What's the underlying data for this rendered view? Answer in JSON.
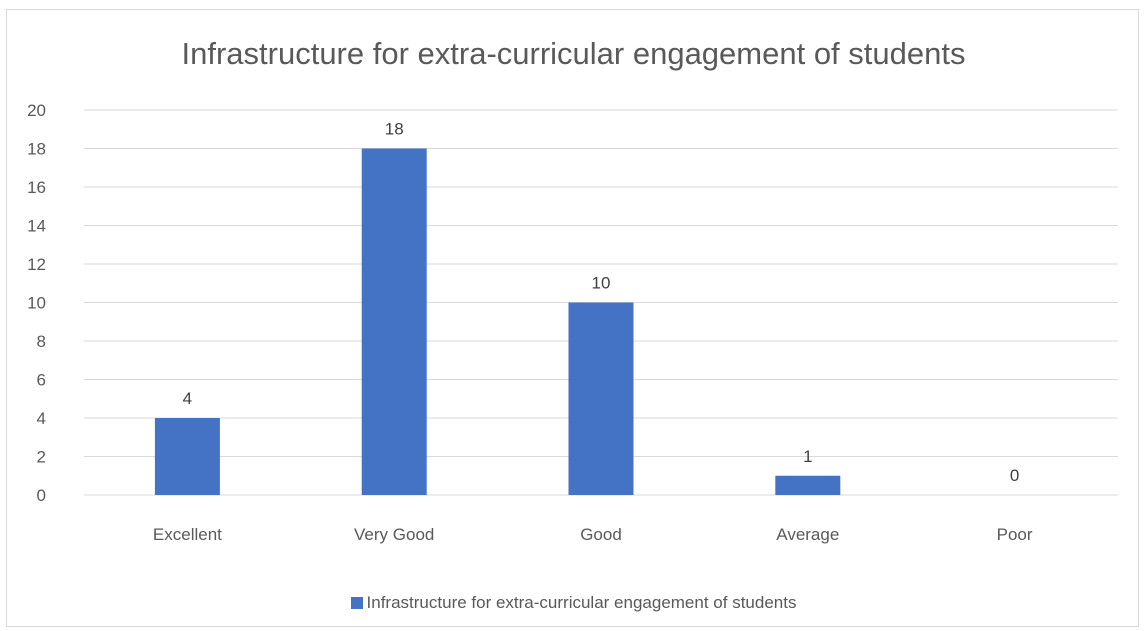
{
  "chart_data": {
    "type": "bar",
    "title": "Infrastructure for extra-curricular engagement of students",
    "xlabel": "",
    "ylabel": "",
    "categories": [
      "Excellent",
      "Very Good",
      "Good",
      "Average",
      "Poor"
    ],
    "series": [
      {
        "name": "Infrastructure for extra-curricular engagement of students",
        "values": [
          4,
          18,
          10,
          1,
          0
        ]
      }
    ],
    "ylim": [
      0,
      20
    ],
    "yticks": [
      0,
      2,
      4,
      6,
      8,
      10,
      12,
      14,
      16,
      18,
      20
    ],
    "data_labels": true,
    "grid": true,
    "legend": "bottom",
    "colors": {
      "bar": "#4472c4",
      "grid": "#d9d9d9",
      "text": "#595959",
      "data_label": "#404040"
    }
  }
}
